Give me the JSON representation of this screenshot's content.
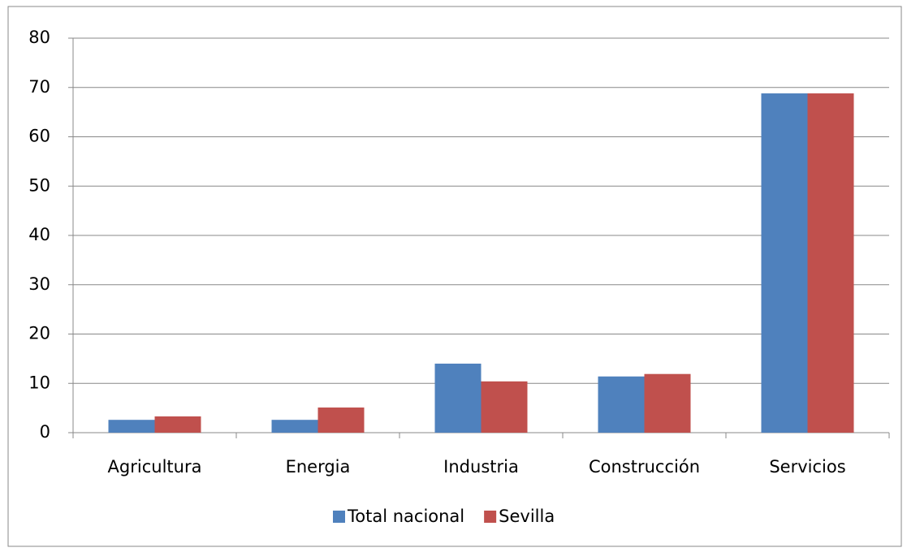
{
  "chart_data": {
    "type": "bar",
    "categories": [
      "Agricultura",
      "Energia",
      "Industria",
      "Construcción",
      "Servicios"
    ],
    "series": [
      {
        "name": "Total nacional",
        "color": "#4f81bd",
        "values": [
          2.6,
          2.6,
          14.0,
          11.4,
          68.8
        ]
      },
      {
        "name": "Sevilla",
        "color": "#c0504d",
        "values": [
          3.3,
          5.1,
          10.4,
          11.9,
          68.8
        ]
      }
    ],
    "ylim": [
      0,
      80
    ],
    "yticks": [
      0,
      10,
      20,
      30,
      40,
      50,
      60,
      70,
      80
    ],
    "grid": true,
    "legend": "bottom"
  }
}
